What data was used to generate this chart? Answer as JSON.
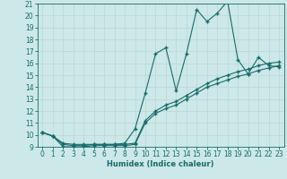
{
  "xlabel": "Humidex (Indice chaleur)",
  "bg_color": "#cce8e8",
  "grid_color": "#aacccc",
  "line_color": "#1a6b6b",
  "marker": "+",
  "xlim": [
    -0.5,
    23.5
  ],
  "ylim": [
    9,
    21
  ],
  "xticks": [
    0,
    1,
    2,
    3,
    4,
    5,
    6,
    7,
    8,
    9,
    10,
    11,
    12,
    13,
    14,
    15,
    16,
    17,
    18,
    19,
    20,
    21,
    22,
    23
  ],
  "yticks": [
    9,
    10,
    11,
    12,
    13,
    14,
    15,
    16,
    17,
    18,
    19,
    20,
    21
  ],
  "line1_x": [
    0,
    1,
    2,
    3,
    4,
    5,
    6,
    7,
    8,
    9,
    10,
    11,
    12,
    13,
    14,
    15,
    16,
    17,
    18,
    19,
    20,
    21,
    22,
    23
  ],
  "line1_y": [
    10.2,
    9.9,
    9.3,
    9.2,
    9.2,
    9.2,
    9.2,
    9.2,
    9.3,
    10.5,
    13.5,
    16.8,
    17.3,
    13.7,
    16.8,
    20.5,
    19.5,
    20.2,
    21.2,
    16.3,
    15.1,
    16.5,
    15.8,
    15.7
  ],
  "line2_x": [
    0,
    1,
    2,
    3,
    4,
    5,
    6,
    7,
    8,
    9,
    10,
    11,
    12,
    13,
    14,
    15,
    16,
    17,
    18,
    19,
    20,
    21,
    22,
    23
  ],
  "line2_y": [
    10.2,
    9.9,
    9.2,
    9.1,
    9.1,
    9.2,
    9.2,
    9.2,
    9.2,
    9.3,
    11.2,
    12.0,
    12.5,
    12.8,
    13.3,
    13.8,
    14.3,
    14.7,
    15.0,
    15.3,
    15.5,
    15.8,
    16.0,
    16.1
  ],
  "line3_x": [
    0,
    1,
    2,
    3,
    4,
    5,
    6,
    7,
    8,
    9,
    10,
    11,
    12,
    13,
    14,
    15,
    16,
    17,
    18,
    19,
    20,
    21,
    22,
    23
  ],
  "line3_y": [
    10.2,
    9.9,
    9.0,
    9.0,
    9.0,
    9.1,
    9.1,
    9.1,
    9.1,
    9.2,
    11.0,
    11.8,
    12.2,
    12.5,
    13.0,
    13.5,
    14.0,
    14.3,
    14.6,
    14.9,
    15.1,
    15.4,
    15.6,
    15.8
  ]
}
